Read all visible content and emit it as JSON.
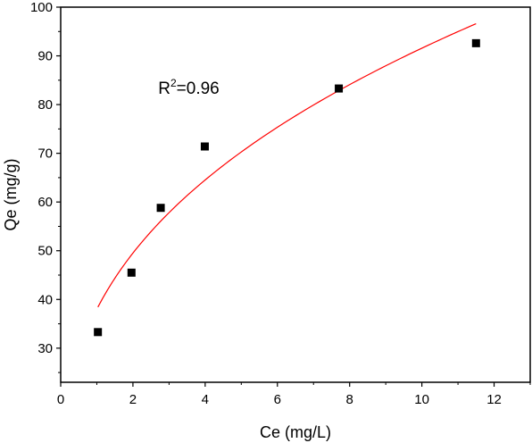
{
  "chart_data": {
    "type": "scatter",
    "title": "",
    "xlabel": "Ce (mg/L)",
    "ylabel": "Qe (mg/g)",
    "xlim": [
      0,
      13
    ],
    "ylim": [
      23,
      100
    ],
    "xticks": [
      0,
      2,
      4,
      6,
      8,
      10,
      12
    ],
    "yticks": [
      30,
      40,
      50,
      60,
      70,
      80,
      90,
      100
    ],
    "grid": false,
    "legend": "none",
    "series": [
      {
        "marker": "square",
        "color": "#000000",
        "points": [
          {
            "x": 1.03,
            "y": 33.3
          },
          {
            "x": 1.96,
            "y": 45.5
          },
          {
            "x": 2.77,
            "y": 58.8
          },
          {
            "x": 3.99,
            "y": 71.4
          },
          {
            "x": 7.7,
            "y": 83.3
          },
          {
            "x": 11.5,
            "y": 92.6
          }
        ]
      }
    ],
    "fit": {
      "model": "freundlich",
      "color": "#ff0000",
      "k": 38.0,
      "n": 0.382,
      "x_range": [
        1.03,
        11.5
      ]
    },
    "annotation": {
      "prefix": "R",
      "superscript": "2",
      "suffix": "=0.96",
      "x": 2.7,
      "y": 82.2
    }
  }
}
